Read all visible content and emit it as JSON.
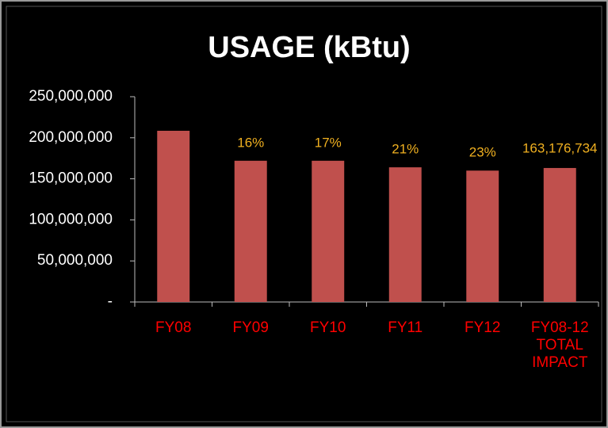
{
  "chart_data": {
    "type": "bar",
    "title": "USAGE (kBtu)",
    "categories": [
      "FY08",
      "FY09",
      "FY10",
      "FY11",
      "FY12",
      "FY08-12 TOTAL IMPACT"
    ],
    "values": [
      208500000,
      172000000,
      172000000,
      164000000,
      160000000,
      163176734
    ],
    "value_labels": [
      null,
      null,
      null,
      null,
      null,
      "163,176,734"
    ],
    "percent_labels": [
      null,
      "16%",
      "17%",
      "21%",
      "23%",
      null
    ],
    "color": "#c0504d",
    "ylim": [
      0,
      250000000
    ],
    "yticks": [
      {
        "value": 0,
        "label": "-"
      },
      {
        "value": 50000000,
        "label": "50,000,000"
      },
      {
        "value": 100000000,
        "label": "100,000,000"
      },
      {
        "value": 150000000,
        "label": "150,000,000"
      },
      {
        "value": 200000000,
        "label": "200,000,000"
      },
      {
        "value": 250000000,
        "label": "250,000,000"
      }
    ]
  }
}
